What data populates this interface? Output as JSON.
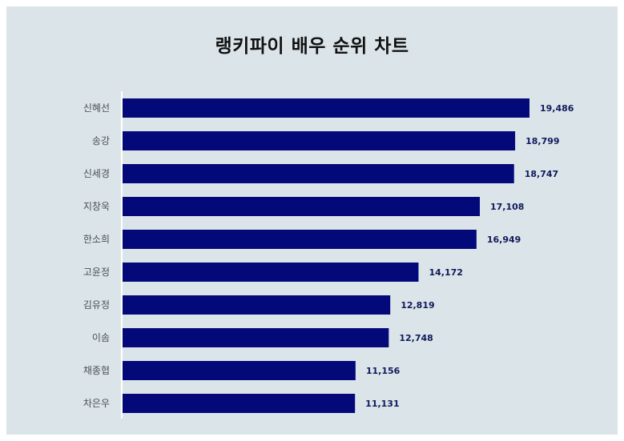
{
  "chart_data": {
    "type": "bar",
    "orientation": "horizontal",
    "title": "랭키파이 배우 순위 차트",
    "categories": [
      "신혜선",
      "송강",
      "신세경",
      "지창욱",
      "한소희",
      "고윤정",
      "김유정",
      "이솜",
      "채종협",
      "차은우"
    ],
    "values": [
      19486,
      18799,
      18747,
      17108,
      16949,
      14172,
      12819,
      12748,
      11156,
      11131
    ],
    "value_labels": [
      "19,486",
      "18,799",
      "18,747",
      "17,108",
      "16,949",
      "14,172",
      "12,819",
      "12,748",
      "11,156",
      "11,131"
    ],
    "xlim": [
      0,
      19486
    ],
    "grid": false,
    "bar_color": "#04097a",
    "background_color": "#dbe5e9"
  }
}
